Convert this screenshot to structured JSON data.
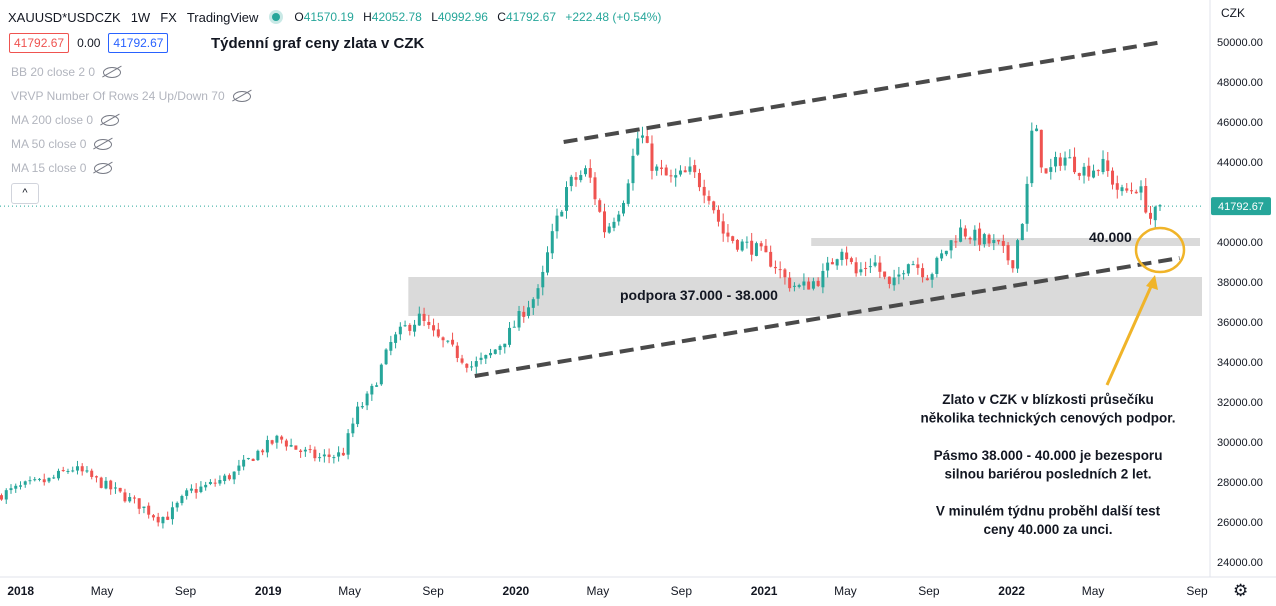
{
  "header": {
    "symbol": "XAUUSD*USDCZK",
    "interval": "1W",
    "market": "FX",
    "source": "TradingView",
    "open_label": "O",
    "open": "41570.19",
    "high_label": "H",
    "high": "42052.78",
    "low_label": "L",
    "low": "40992.96",
    "close_label": "C",
    "close": "41792.67",
    "change": "+222.48 (+0.54%)",
    "sell_price": "41792.67",
    "spread": "0.00",
    "buy_price": "41792.67"
  },
  "title": "Týdenní graf ceny zlata v CZK",
  "indicators": [
    "BB 20 close 2 0",
    "VRVP Number Of Rows 24 Up/Down 70",
    "MA 200 close 0",
    "MA 50 close 0",
    "MA 15 close 0"
  ],
  "collapse_label": "^",
  "currency_label": "CZK",
  "colors": {
    "up": "#26a69a",
    "down": "#ef5350",
    "trendline": "#4a4a4a",
    "zone": "#d6d6d6",
    "circle": "#f0b429",
    "arrow": "#f0b429",
    "price_tag": "#26a69a"
  },
  "annotations": {
    "zone_label": "podpora 37.000 - 38.000",
    "level_label": "40.000",
    "note_lines": [
      "Zlato v CZK v blízkosti průsečíku",
      "několika technických cenových podpor.",
      "",
      "Pásmo 38.000 - 40.000 je bezesporu",
      "silnou bariérou posledních 2 let.",
      "",
      "V minulém týdnu proběhl další test",
      "ceny 40.000 za unci."
    ]
  },
  "chart_data": {
    "type": "candlestick",
    "y_unit": "CZK",
    "ylim": [
      23500,
      51000
    ],
    "y_ticks": [
      "24000.00",
      "26000.00",
      "28000.00",
      "30000.00",
      "32000.00",
      "34000.00",
      "36000.00",
      "38000.00",
      "40000.00",
      "42000.00",
      "44000.00",
      "46000.00",
      "48000.00",
      "50000.00"
    ],
    "x_ticks": [
      "2018",
      "May",
      "Sep",
      "2019",
      "May",
      "Sep",
      "2020",
      "May",
      "Sep",
      "2021",
      "May",
      "Sep",
      "2022",
      "May",
      "Sep"
    ],
    "x_range": [
      "2017-12-31",
      "2022-09-18"
    ],
    "last_price": "41792.67",
    "close_path": [
      [
        "2017-12-31",
        27300
      ],
      [
        "2018-02-10",
        27800
      ],
      [
        "2018-03-20",
        28100
      ],
      [
        "2018-04-20",
        28700
      ],
      [
        "2018-05-10",
        28400
      ],
      [
        "2018-06-20",
        27600
      ],
      [
        "2018-08-01",
        26800
      ],
      [
        "2018-08-25",
        26200
      ],
      [
        "2018-09-10",
        26300
      ],
      [
        "2018-10-10",
        27500
      ],
      [
        "2018-11-15",
        27900
      ],
      [
        "2018-12-15",
        28400
      ],
      [
        "2019-01-20",
        29500
      ],
      [
        "2019-02-20",
        30200
      ],
      [
        "2019-03-20",
        29600
      ],
      [
        "2019-04-20",
        29200
      ],
      [
        "2019-05-25",
        29400
      ],
      [
        "2019-06-15",
        31500
      ],
      [
        "2019-07-05",
        32400
      ],
      [
        "2019-08-05",
        35000
      ],
      [
        "2019-08-25",
        35700
      ],
      [
        "2019-09-15",
        36200
      ],
      [
        "2019-10-10",
        35200
      ],
      [
        "2019-11-10",
        34400
      ],
      [
        "2019-12-01",
        33800
      ],
      [
        "2019-12-25",
        34200
      ],
      [
        "2020-01-25",
        35400
      ],
      [
        "2020-02-20",
        36800
      ],
      [
        "2020-03-10",
        37500
      ],
      [
        "2020-03-25",
        39800
      ],
      [
        "2020-04-20",
        42800
      ],
      [
        "2020-05-20",
        43600
      ],
      [
        "2020-06-15",
        40500
      ],
      [
        "2020-07-10",
        42000
      ],
      [
        "2020-08-05",
        45600
      ],
      [
        "2020-08-25",
        43700
      ],
      [
        "2020-09-20",
        43100
      ],
      [
        "2020-10-20",
        43500
      ],
      [
        "2020-11-15",
        42400
      ],
      [
        "2020-12-05",
        40500
      ],
      [
        "2020-12-25",
        40000
      ],
      [
        "2021-01-20",
        39700
      ],
      [
        "2021-02-20",
        38900
      ],
      [
        "2021-03-10",
        38000
      ],
      [
        "2021-03-30",
        37700
      ],
      [
        "2021-04-30",
        38200
      ],
      [
        "2021-05-30",
        39800
      ],
      [
        "2021-06-20",
        38400
      ],
      [
        "2021-07-15",
        39100
      ],
      [
        "2021-08-10",
        37600
      ],
      [
        "2021-09-05",
        39200
      ],
      [
        "2021-10-05",
        38300
      ],
      [
        "2021-11-05",
        39900
      ],
      [
        "2021-11-20",
        40600
      ],
      [
        "2021-12-15",
        40200
      ],
      [
        "2022-01-15",
        39800
      ],
      [
        "2022-02-05",
        38900
      ],
      [
        "2022-02-25",
        41900
      ],
      [
        "2022-03-08",
        46200
      ],
      [
        "2022-03-25",
        43200
      ],
      [
        "2022-04-20",
        44300
      ],
      [
        "2022-05-20",
        43600
      ],
      [
        "2022-06-20",
        43800
      ],
      [
        "2022-07-15",
        42400
      ],
      [
        "2022-08-10",
        42800
      ],
      [
        "2022-08-28",
        41200
      ],
      [
        "2022-09-10",
        41570
      ]
    ],
    "support_zone": {
      "low": 37000,
      "high": 38000,
      "from": "2019-08-25",
      "to": "2022-09-18"
    },
    "level_40000": {
      "low": 39900,
      "high": 40200,
      "from": "2021-04-10",
      "to": "2022-09-18"
    },
    "trendlines": [
      {
        "from": [
          "2020-04-10",
          45000
        ],
        "to": [
          "2022-09-10",
          50000
        ]
      },
      {
        "from": [
          "2019-12-01",
          33300
        ],
        "to": [
          "2022-10-05",
          39200
        ]
      }
    ]
  }
}
